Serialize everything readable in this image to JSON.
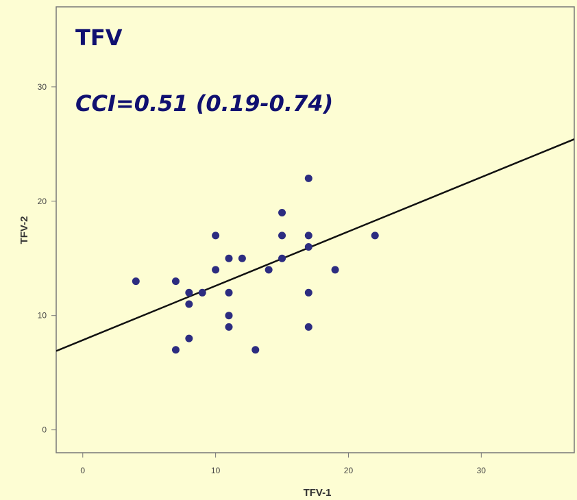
{
  "chart_data": {
    "type": "scatter",
    "title": "TFV",
    "subtitle": "CCI=0.51 (0.19-0.74)",
    "xlabel": "TFV-1",
    "ylabel": "TFV-2",
    "xlim": [
      -2,
      37
    ],
    "ylim": [
      -2,
      37
    ],
    "xticks": [
      0,
      10,
      20,
      30
    ],
    "yticks": [
      0,
      10,
      20,
      30
    ],
    "grid": false,
    "colors": {
      "background": "#fdfdd3",
      "points": "#2c2c80",
      "line": "#111111",
      "title": "#101070"
    },
    "points": [
      {
        "x": 4,
        "y": 13
      },
      {
        "x": 7,
        "y": 13
      },
      {
        "x": 7,
        "y": 7
      },
      {
        "x": 8,
        "y": 12
      },
      {
        "x": 8,
        "y": 11
      },
      {
        "x": 8,
        "y": 8
      },
      {
        "x": 9,
        "y": 12
      },
      {
        "x": 10,
        "y": 17
      },
      {
        "x": 10,
        "y": 14
      },
      {
        "x": 11,
        "y": 15
      },
      {
        "x": 11,
        "y": 12
      },
      {
        "x": 11,
        "y": 10
      },
      {
        "x": 11,
        "y": 9
      },
      {
        "x": 12,
        "y": 15
      },
      {
        "x": 13,
        "y": 7
      },
      {
        "x": 14,
        "y": 14
      },
      {
        "x": 15,
        "y": 19
      },
      {
        "x": 15,
        "y": 17
      },
      {
        "x": 15,
        "y": 15
      },
      {
        "x": 17,
        "y": 22
      },
      {
        "x": 17,
        "y": 17
      },
      {
        "x": 17,
        "y": 16
      },
      {
        "x": 17,
        "y": 12
      },
      {
        "x": 17,
        "y": 9
      },
      {
        "x": 19,
        "y": 14
      },
      {
        "x": 22,
        "y": 17
      }
    ],
    "fit_line": {
      "intercept": 7.85,
      "slope": 0.475
    }
  }
}
